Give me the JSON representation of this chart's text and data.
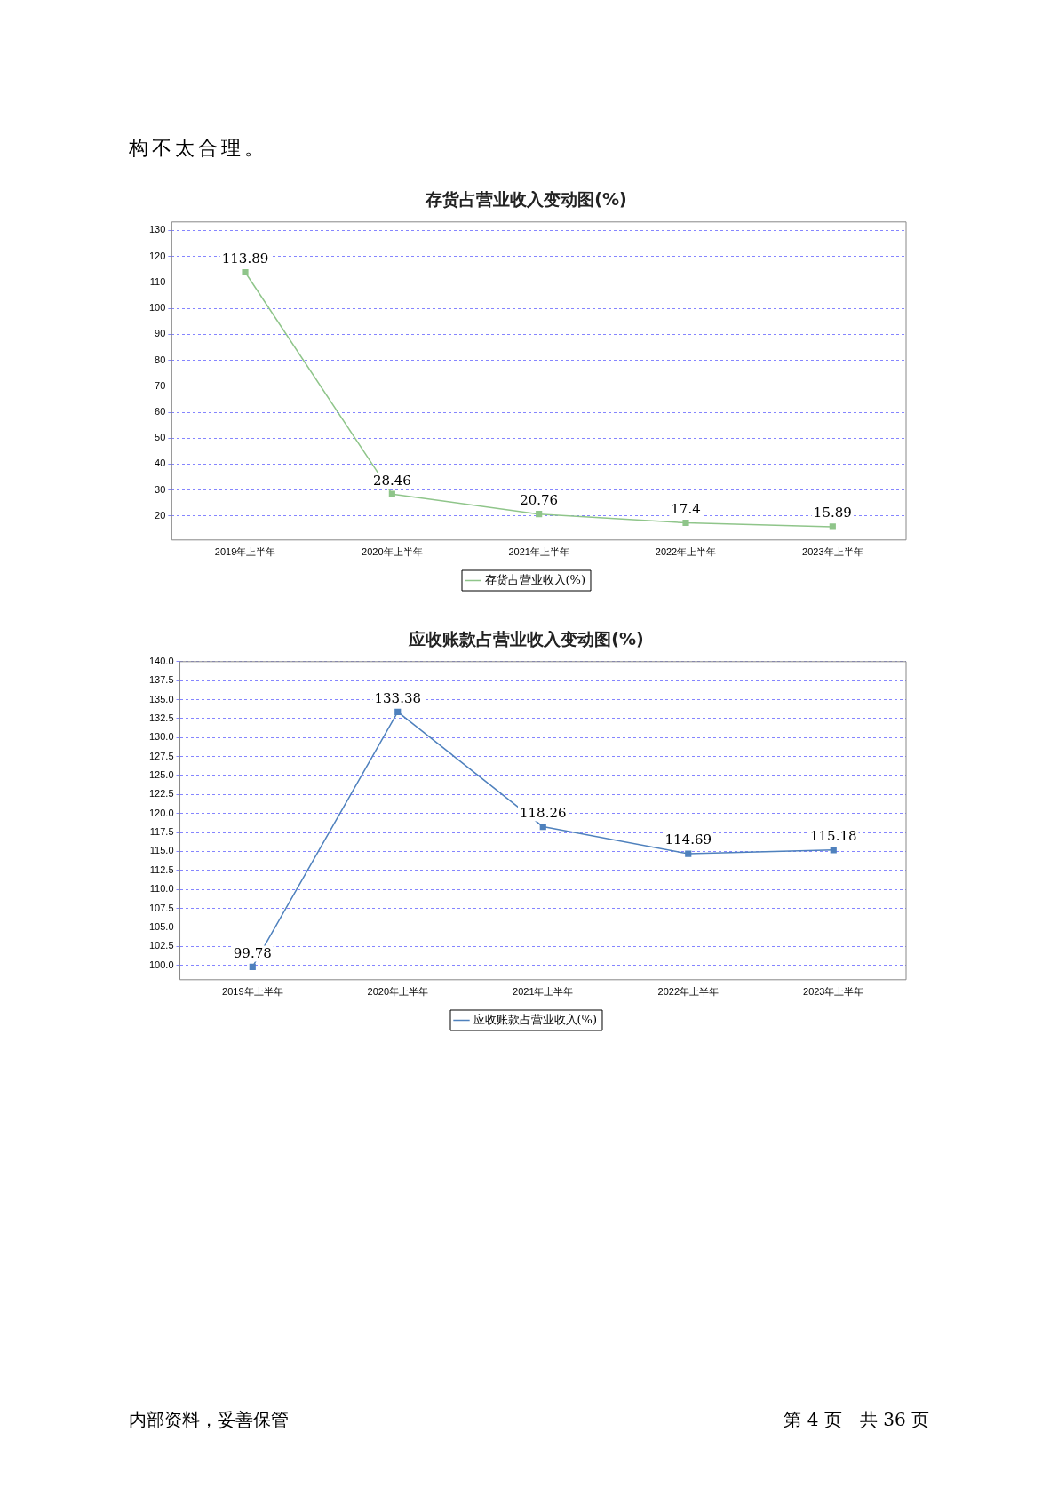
{
  "chart_data": [
    {
      "type": "line",
      "title": "存货占营业收入变动图(%)",
      "annotations": [
        "构不太合理。"
      ],
      "categories": [
        "2019年上半年",
        "2020年上半年",
        "2021年上半年",
        "2022年上半年",
        "2023年上半年"
      ],
      "series": [
        {
          "name": "存货占营业收入(%)",
          "color": "#8fc58a",
          "values": [
            113.89,
            28.46,
            20.76,
            17.4,
            15.89
          ]
        }
      ],
      "ylim": [
        10.8,
        133.3
      ],
      "yticks": [
        20,
        30,
        40,
        50,
        60,
        70,
        80,
        90,
        100,
        110,
        120,
        130
      ],
      "grid": "y",
      "legend": "bottom",
      "marker": "square",
      "line_style": "solid",
      "data_labels": true
    },
    {
      "type": "line",
      "title": "应收账款占营业收入变动图(%)",
      "annotations": [
        "内部资料，妥善保管",
        "第 4 页　共 36 页"
      ],
      "categories": [
        "2019年上半年",
        "2020年上半年",
        "2021年上半年",
        "2022年上半年",
        "2023年上半年"
      ],
      "series": [
        {
          "name": "应收账款占营业收入(%)",
          "color": "#4f81bd",
          "values": [
            99.78,
            133.38,
            118.26,
            114.69,
            115.18
          ]
        }
      ],
      "ylim": [
        98.1,
        140
      ],
      "yticks": [
        {
          "value": 100,
          "label": "100.0"
        },
        {
          "value": 102.5,
          "label": "102.5"
        },
        {
          "value": 105,
          "label": "105.0"
        },
        {
          "value": 107.5,
          "label": "107.5"
        },
        {
          "value": 110,
          "label": "110.0"
        },
        {
          "value": 112.5,
          "label": "112.5"
        },
        {
          "value": 115,
          "label": "115.0"
        },
        {
          "value": 117.5,
          "label": "117.5"
        },
        {
          "value": 120,
          "label": "120.0"
        },
        {
          "value": 122.5,
          "label": "122.5"
        },
        {
          "value": 125,
          "label": "125.0"
        },
        {
          "value": 127.5,
          "label": "127.5"
        },
        {
          "value": 130,
          "label": "130.0"
        },
        {
          "value": 132.5,
          "label": "132.5"
        },
        {
          "value": 135,
          "label": "135.0"
        },
        {
          "value": 137.5,
          "label": "137.5"
        },
        {
          "value": 140,
          "label": "140.0"
        }
      ],
      "grid": "y",
      "legend": "bottom",
      "marker": "square",
      "line_style": "solid",
      "data_labels": true
    }
  ]
}
